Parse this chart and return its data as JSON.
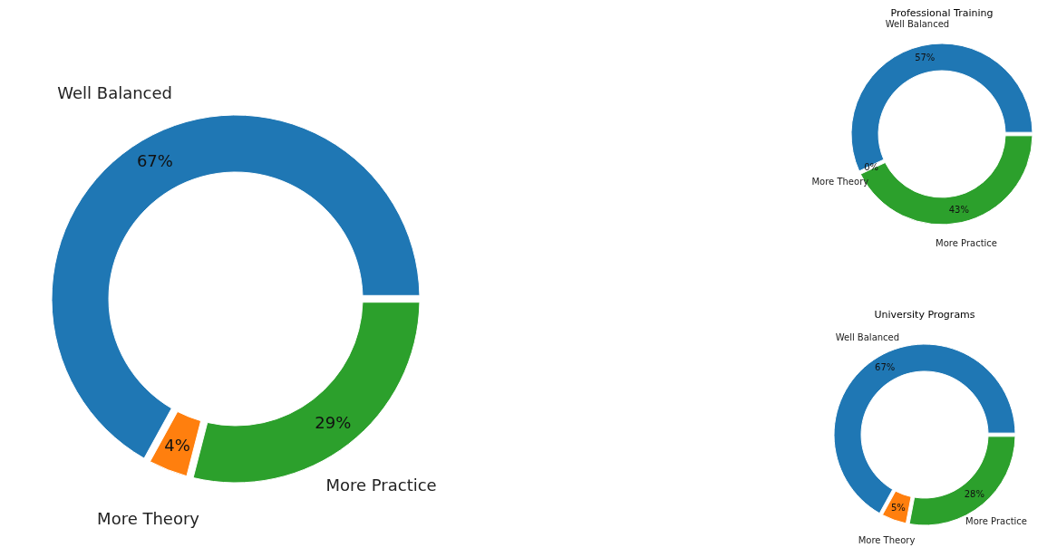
{
  "chart_data": [
    {
      "type": "donut",
      "categories": [
        "Well Balanced",
        "More Theory",
        "More Practice"
      ],
      "values": [
        67,
        4,
        29
      ],
      "colors": [
        "#1f77b4",
        "#ff7f0e",
        "#2ca02c"
      ],
      "value_labels": [
        "67%",
        "4%",
        "29%"
      ]
    },
    {
      "type": "donut",
      "title": "Professional Training",
      "categories": [
        "Well Balanced",
        "More Theory",
        "More Practice"
      ],
      "values": [
        57,
        0,
        43
      ],
      "colors": [
        "#1f77b4",
        "#ff7f0e",
        "#2ca02c"
      ],
      "value_labels": [
        "57%",
        "0%",
        "43%"
      ]
    },
    {
      "type": "donut",
      "title": "University Programs",
      "categories": [
        "Well Balanced",
        "More Theory",
        "More Practice"
      ],
      "values": [
        67,
        5,
        28
      ],
      "colors": [
        "#1f77b4",
        "#ff7f0e",
        "#2ca02c"
      ],
      "value_labels": [
        "67%",
        "5%",
        "28%"
      ]
    }
  ]
}
